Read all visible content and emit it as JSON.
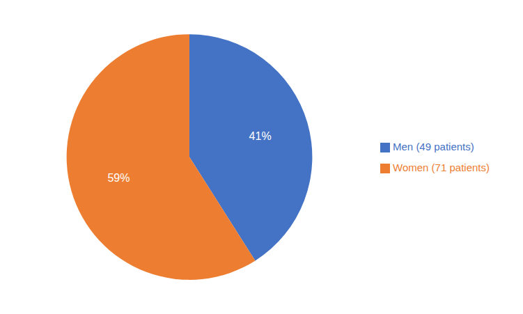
{
  "chart_data": {
    "type": "pie",
    "categories": [
      "Men (49 patients)",
      "Women (71 patients)"
    ],
    "values": [
      41,
      59
    ],
    "value_labels": [
      "41%",
      "59%"
    ],
    "colors": [
      "#4472C4",
      "#ED7D31"
    ],
    "data_labels": true,
    "legend": "right"
  }
}
